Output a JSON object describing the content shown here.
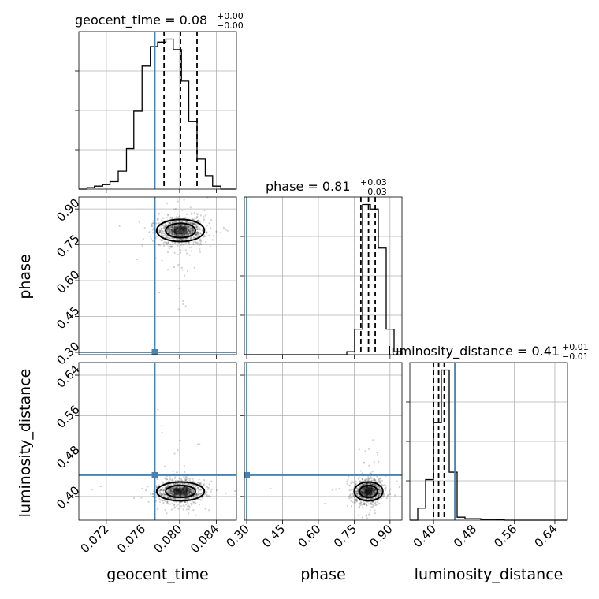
{
  "chart_data": {
    "type": "corner",
    "parameters": [
      "geocent_time",
      "phase",
      "luminosity_distance"
    ],
    "truths": {
      "geocent_time": 0.0773,
      "phase": 0.3,
      "luminosity_distance": 0.442
    },
    "titles": {
      "geocent_time": {
        "main": "geocent_time = 0.08",
        "sup": "+0.00",
        "sub": "−0.00"
      },
      "phase": {
        "main": "phase = 0.81",
        "sup": "+0.03",
        "sub": "−0.03"
      },
      "luminosity_distance": {
        "main": "luminosity_distance = 0.41",
        "sup": "+0.01",
        "sub": "−0.01"
      }
    },
    "axes": {
      "geocent_time": {
        "label": "geocent_time",
        "range": [
          0.069,
          0.0862
        ],
        "ticks": [
          0.072,
          0.076,
          0.08,
          0.084
        ],
        "tick_labels": [
          "0.072",
          "0.076",
          "0.080",
          "0.084"
        ]
      },
      "phase": {
        "label": "phase",
        "range": [
          0.29,
          0.95
        ],
        "ticks": [
          0.3,
          0.45,
          0.6,
          0.75,
          0.9
        ],
        "tick_labels": [
          "0.30",
          "0.45",
          "0.60",
          "0.75",
          "0.90"
        ]
      },
      "luminosity_distance": {
        "label": "luminosity_distance",
        "range": [
          0.353,
          0.665
        ],
        "ticks": [
          0.4,
          0.48,
          0.56,
          0.64
        ],
        "tick_labels": [
          "0.40",
          "0.48",
          "0.56",
          "0.64"
        ]
      }
    },
    "histograms": {
      "geocent_time": {
        "edges": [
          0.069,
          0.0699,
          0.0707,
          0.0716,
          0.0724,
          0.0733,
          0.0742,
          0.075,
          0.0759,
          0.0768,
          0.0776,
          0.0785,
          0.0793,
          0.0802,
          0.081,
          0.0819,
          0.0828,
          0.0836,
          0.0845,
          0.0853,
          0.0862
        ],
        "counts": [
          0,
          1,
          2,
          3,
          5,
          12,
          27,
          52,
          82,
          95,
          98,
          100,
          93,
          72,
          45,
          20,
          9,
          2,
          0,
          0
        ],
        "quantiles": [
          0.0783,
          0.0801,
          0.0819
        ]
      },
      "phase": {
        "edges": [
          0.29,
          0.323,
          0.356,
          0.389,
          0.422,
          0.455,
          0.488,
          0.521,
          0.554,
          0.587,
          0.62,
          0.653,
          0.686,
          0.719,
          0.752,
          0.785,
          0.818,
          0.851,
          0.884,
          0.917,
          0.95
        ],
        "counts": [
          0,
          0,
          0,
          0,
          0,
          0,
          0,
          0,
          0,
          0,
          0,
          0,
          0,
          2,
          17,
          100,
          97,
          71,
          17,
          2
        ],
        "quantiles": [
          0.778,
          0.81,
          0.838
        ]
      },
      "luminosity_distance": {
        "edges": [
          0.353,
          0.3686,
          0.3842,
          0.3998,
          0.4154,
          0.431,
          0.4466,
          0.4622,
          0.4778,
          0.4934,
          0.509,
          0.5246,
          0.5402,
          0.5558,
          0.5714,
          0.587,
          0.6026,
          0.6182,
          0.6338,
          0.6494,
          0.665
        ],
        "counts": [
          0,
          8,
          27,
          65,
          100,
          32,
          2,
          1,
          1,
          0.5,
          0.5,
          0.3,
          0,
          0,
          0,
          0,
          0,
          0,
          0,
          0
        ],
        "quantiles": [
          0.4,
          0.41,
          0.421
        ]
      }
    },
    "joint": [
      {
        "x": "geocent_time",
        "y": "phase",
        "center": [
          0.0801,
          0.81
        ]
      },
      {
        "x": "geocent_time",
        "y": "luminosity_distance",
        "center": [
          0.0801,
          0.41
        ]
      },
      {
        "x": "phase",
        "y": "luminosity_distance",
        "center": [
          0.81,
          0.41
        ]
      }
    ]
  }
}
